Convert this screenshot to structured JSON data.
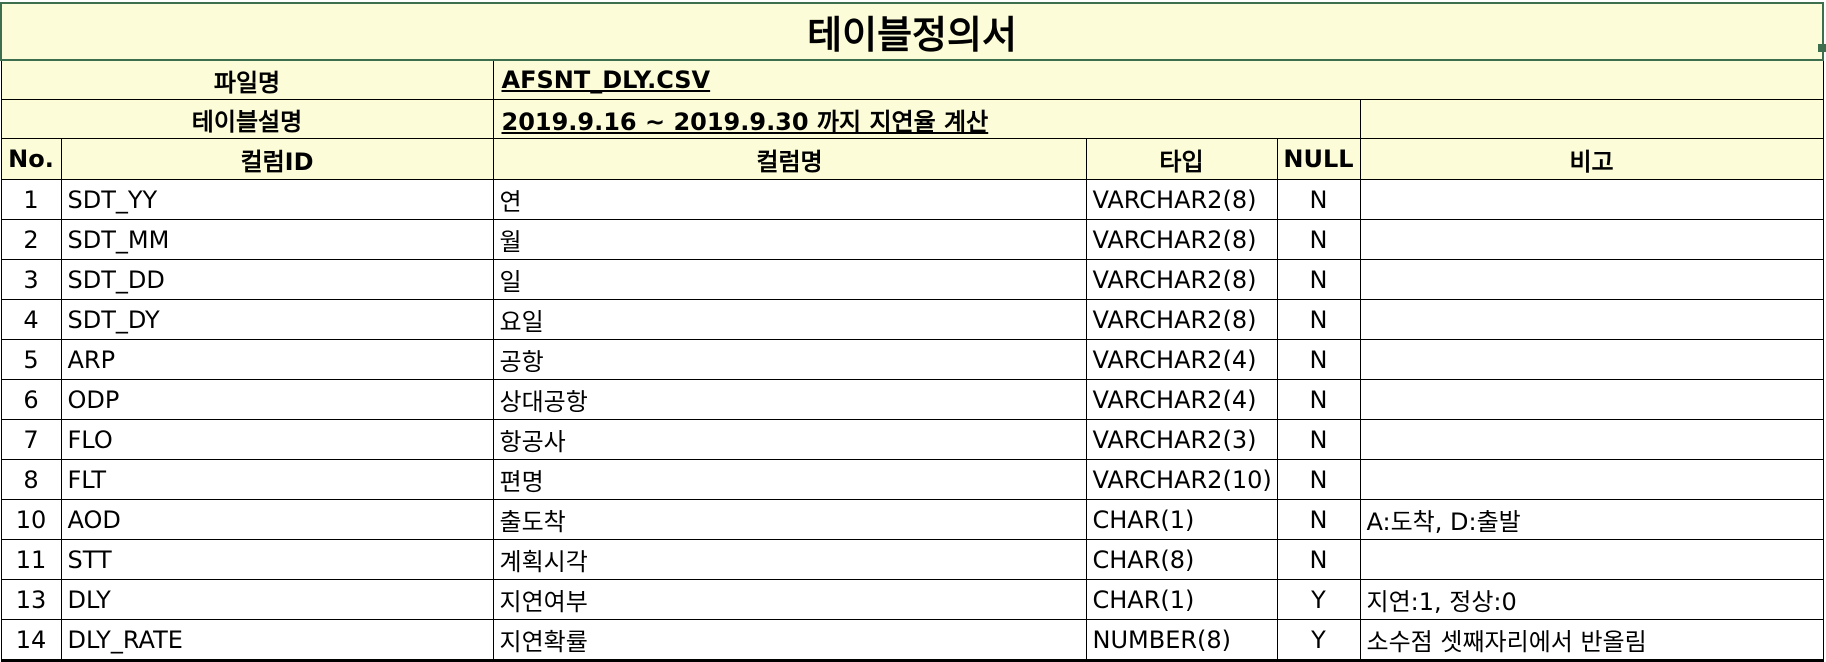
{
  "doc": {
    "title": "테이블정의서",
    "file_label": "파일명",
    "file_value": "AFSNT_DLY.CSV",
    "desc_label": "테이블설명",
    "desc_value": "2019.9.16 ~ 2019.9.30 까지 지연율 계산"
  },
  "headers": {
    "no": "No.",
    "col_id": "컬럼ID",
    "col_name": "컬럼명",
    "type": "타입",
    "null": "NULL",
    "remark": "비고"
  },
  "rows": [
    {
      "no": "1",
      "id": "SDT_YY",
      "name": "연",
      "type": "VARCHAR2(8)",
      "null": "N",
      "remark": ""
    },
    {
      "no": "2",
      "id": "SDT_MM",
      "name": "월",
      "type": "VARCHAR2(8)",
      "null": "N",
      "remark": ""
    },
    {
      "no": "3",
      "id": "SDT_DD",
      "name": "일",
      "type": "VARCHAR2(8)",
      "null": "N",
      "remark": ""
    },
    {
      "no": "4",
      "id": "SDT_DY",
      "name": "요일",
      "type": "VARCHAR2(8)",
      "null": "N",
      "remark": ""
    },
    {
      "no": "5",
      "id": "ARP",
      "name": "공항",
      "type": "VARCHAR2(4)",
      "null": "N",
      "remark": ""
    },
    {
      "no": "6",
      "id": "ODP",
      "name": "상대공항",
      "type": "VARCHAR2(4)",
      "null": "N",
      "remark": ""
    },
    {
      "no": "7",
      "id": "FLO",
      "name": "항공사",
      "type": "VARCHAR2(3)",
      "null": "N",
      "remark": ""
    },
    {
      "no": "8",
      "id": "FLT",
      "name": "편명",
      "type": "VARCHAR2(10)",
      "null": "N",
      "remark": ""
    },
    {
      "no": "10",
      "id": "AOD",
      "name": "출도착",
      "type": "CHAR(1)",
      "null": "N",
      "remark": "A:도착, D:출발"
    },
    {
      "no": "11",
      "id": "STT",
      "name": "계획시각",
      "type": "CHAR(8)",
      "null": "N",
      "remark": ""
    },
    {
      "no": "13",
      "id": "DLY",
      "name": "지연여부",
      "type": "CHAR(1)",
      "null": "Y",
      "remark": "지연:1, 정상:0"
    },
    {
      "no": "14",
      "id": "DLY_RATE",
      "name": "지연확률",
      "type": "NUMBER(8)",
      "null": "Y",
      "remark": "소수점 셋째자리에서 반올림"
    }
  ],
  "colors": {
    "header_fill": "#fcfcd8",
    "selection_border": "#3d6e4e"
  }
}
